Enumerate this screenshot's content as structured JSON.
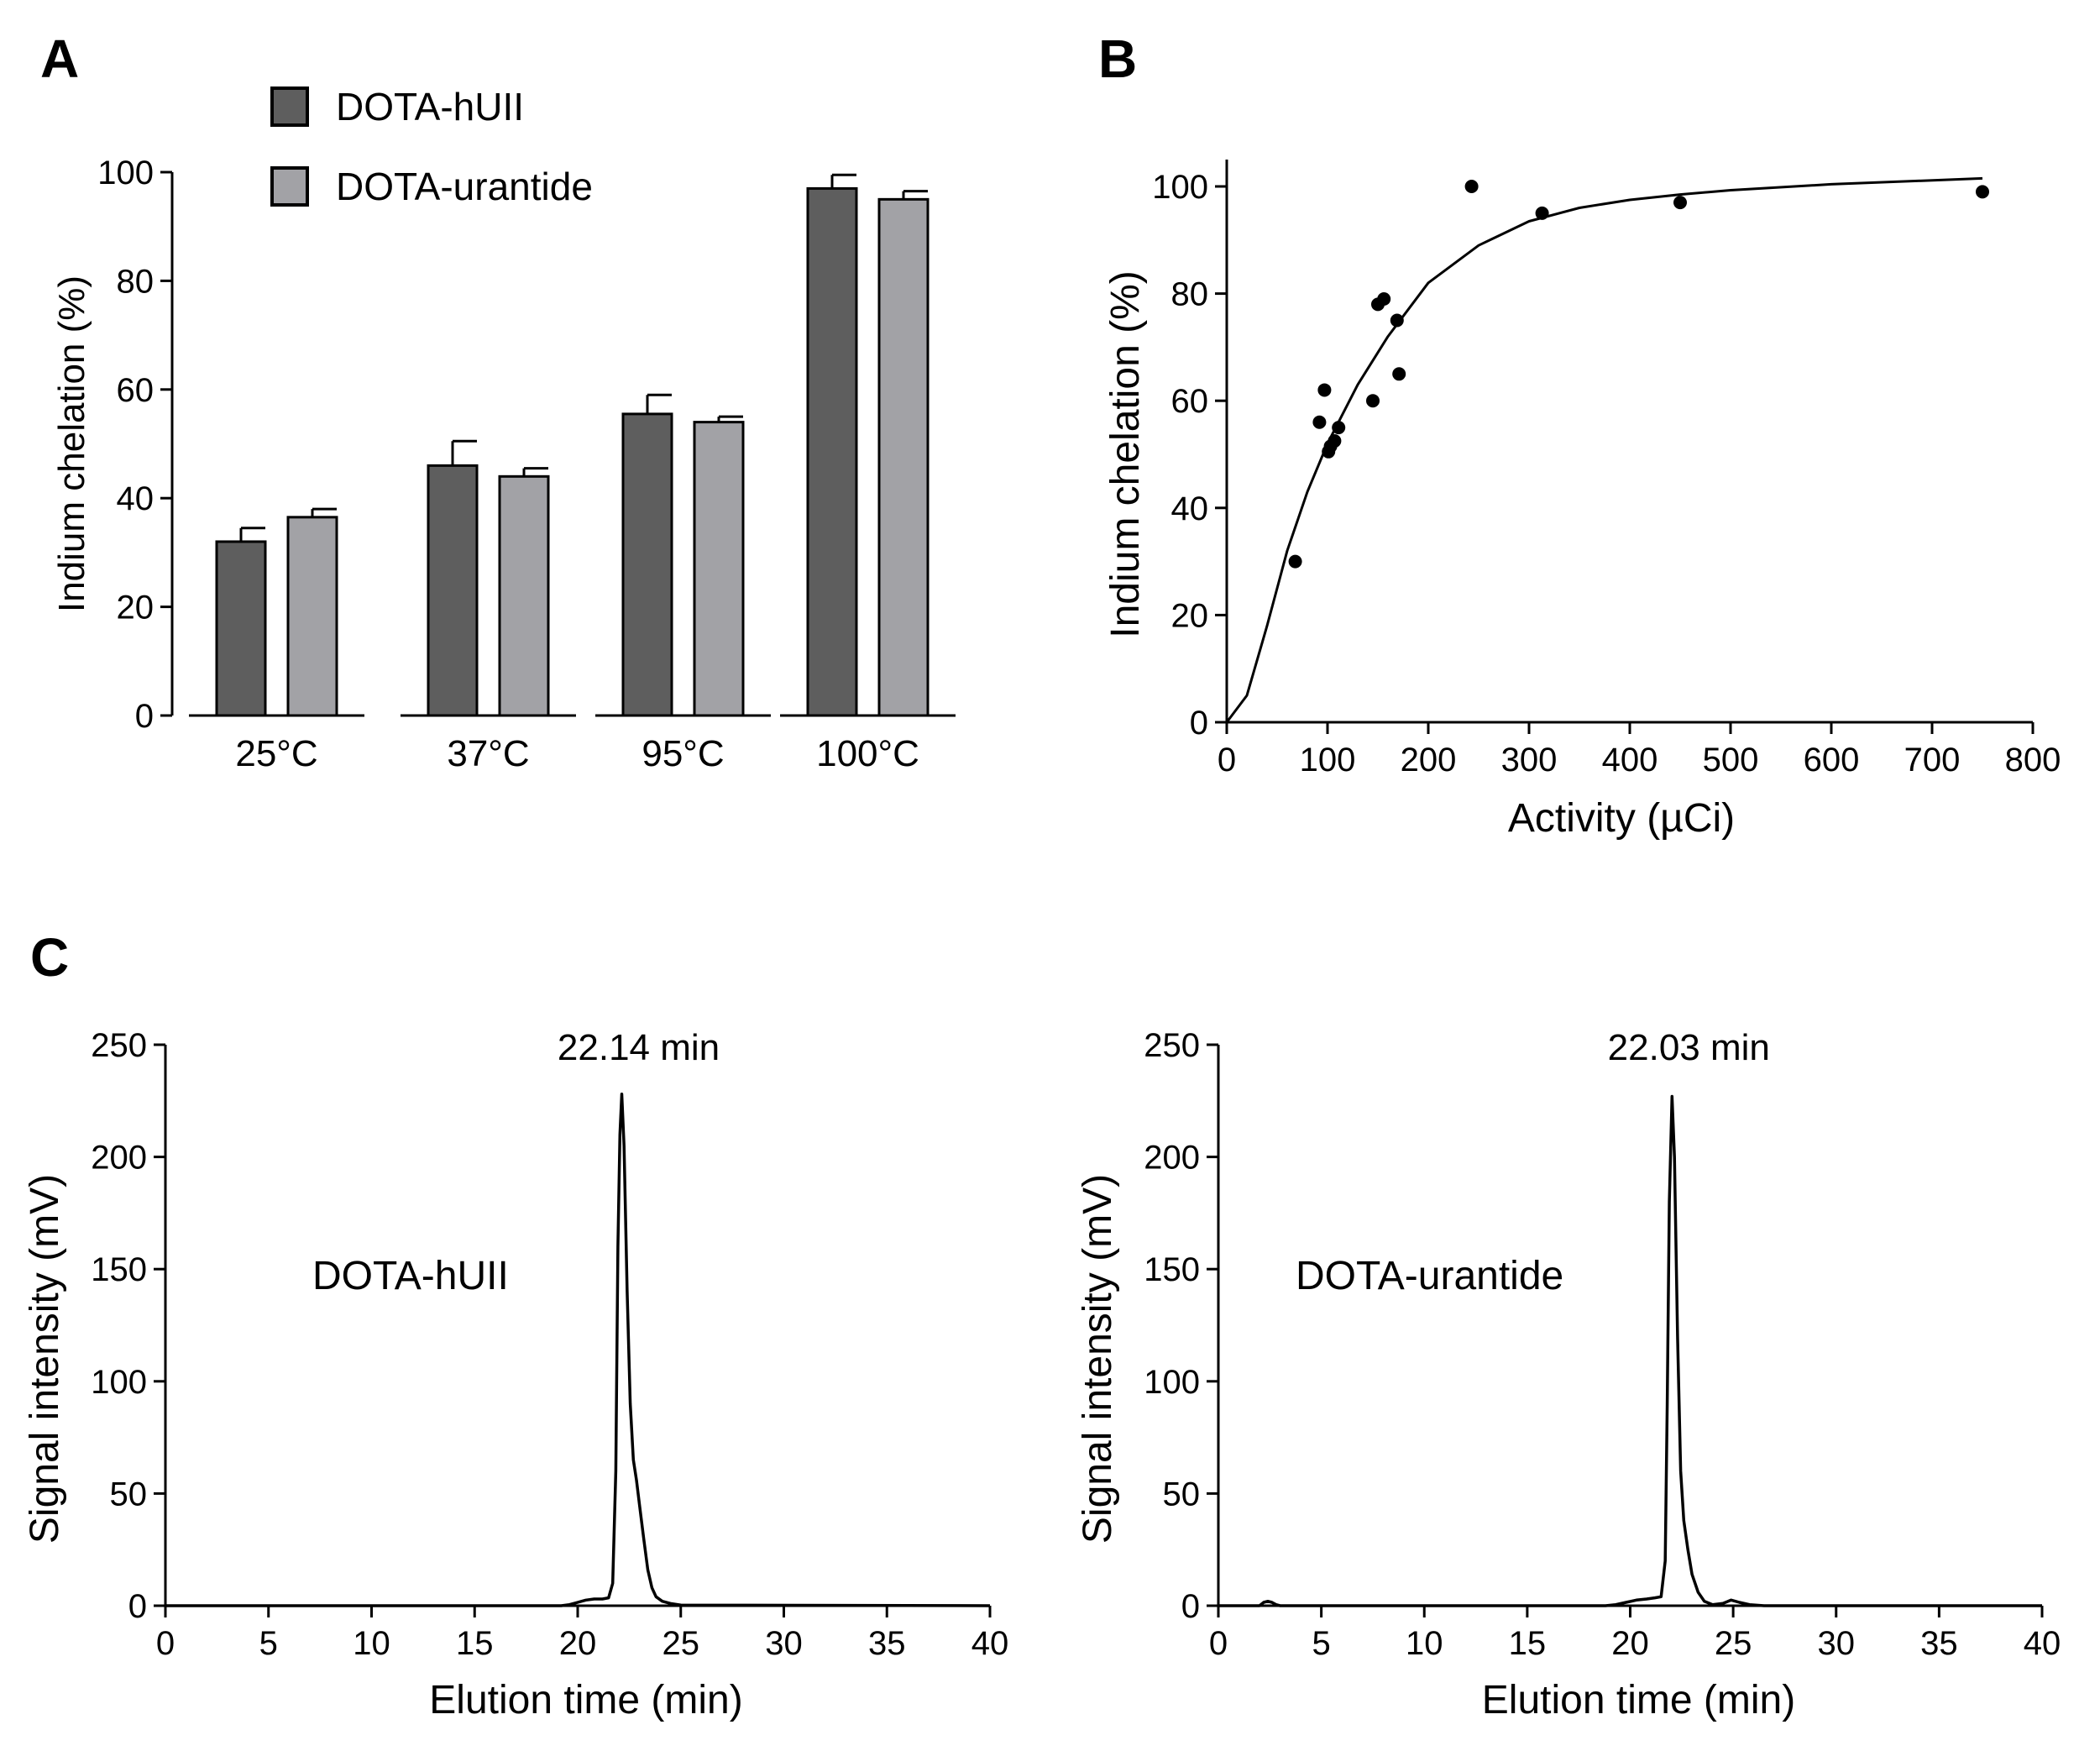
{
  "panels": {
    "a": {
      "letter": "A"
    },
    "b": {
      "letter": "B"
    },
    "c": {
      "letter": "C"
    }
  },
  "chart_data": [
    {
      "id": "A",
      "type": "bar",
      "categories": [
        "25°C",
        "37°C",
        "95°C",
        "100°C"
      ],
      "series": [
        {
          "name": "DOTA-hUII",
          "color": "#5e5e5e",
          "values": [
            32,
            46,
            55.5,
            97
          ],
          "errors": [
            2.5,
            4.5,
            3.5,
            2.5
          ]
        },
        {
          "name": "DOTA-urantide",
          "color": "#a2a2a6",
          "values": [
            36.5,
            44,
            54,
            95
          ],
          "errors": [
            1.5,
            1.5,
            1,
            1.5
          ]
        }
      ],
      "title": "",
      "xlabel": "",
      "ylabel": "Indium chelation  (%)",
      "ylim": [
        0,
        100
      ],
      "yticks": [
        0,
        20,
        40,
        60,
        80,
        100
      ],
      "ytick_labels": [
        "0",
        "20",
        "40",
        "60",
        "80",
        "100"
      ],
      "legend": "top-left",
      "grid": false
    },
    {
      "id": "B",
      "type": "scatter",
      "points": [
        [
          68,
          30
        ],
        [
          92,
          56
        ],
        [
          97,
          62
        ],
        [
          101,
          50.5
        ],
        [
          103,
          51.5
        ],
        [
          107,
          52.5
        ],
        [
          111,
          55
        ],
        [
          145,
          60
        ],
        [
          150,
          78
        ],
        [
          156,
          79
        ],
        [
          169,
          75
        ],
        [
          171,
          65
        ],
        [
          243,
          100
        ],
        [
          313,
          95
        ],
        [
          450,
          97
        ],
        [
          750,
          99
        ]
      ],
      "fit_curve": {
        "type": "sigmoid",
        "x": [
          0,
          20,
          40,
          60,
          80,
          100,
          130,
          160,
          200,
          250,
          300,
          350,
          400,
          450,
          500,
          600,
          750
        ],
        "y": [
          0,
          5,
          18,
          32,
          43,
          52,
          63,
          72,
          82,
          89,
          93.5,
          96,
          97.5,
          98.5,
          99.3,
          100.4,
          101.5
        ]
      },
      "title": "",
      "xlabel": "Activity (µCi)",
      "ylabel": "Indium chelation  (%)",
      "xlim": [
        0,
        800
      ],
      "ylim": [
        0,
        100
      ],
      "xticks": [
        0,
        100,
        200,
        300,
        400,
        500,
        600,
        700,
        800
      ],
      "xtick_labels": [
        "0",
        "100",
        "200",
        "300",
        "400",
        "500",
        "600",
        "700",
        "800"
      ],
      "yticks": [
        0,
        20,
        40,
        60,
        80,
        100
      ],
      "ytick_labels": [
        "0",
        "20",
        "40",
        "60",
        "80",
        "100"
      ],
      "grid": false
    },
    {
      "id": "C-left",
      "type": "line",
      "series_name": "DOTA-hUII",
      "peak_label": "22.14 min",
      "peak_x": 22.14,
      "trace": {
        "x": [
          0,
          19.2,
          19.6,
          20.0,
          20.4,
          20.8,
          21.2,
          21.5,
          21.7,
          21.85,
          21.95,
          22.05,
          22.14,
          22.25,
          22.4,
          22.55,
          22.7,
          22.85,
          23.0,
          23.2,
          23.4,
          23.6,
          23.8,
          24.1,
          24.5,
          25.0,
          40
        ],
        "y": [
          0,
          0,
          0.5,
          1.5,
          2.5,
          3,
          3,
          3.5,
          10,
          60,
          160,
          210,
          228,
          205,
          140,
          90,
          65,
          56,
          45,
          30,
          16,
          8,
          4,
          2,
          1,
          0.3,
          0
        ]
      },
      "title": "",
      "xlabel": "Elution time  (min)",
      "ylabel": "Signal intensity  (mV)",
      "xlim": [
        0,
        40
      ],
      "ylim": [
        0,
        250
      ],
      "xticks": [
        0,
        5,
        10,
        15,
        20,
        25,
        30,
        35,
        40
      ],
      "xtick_labels": [
        "0",
        "5",
        "10",
        "15",
        "20",
        "25",
        "30",
        "35",
        "40"
      ],
      "yticks": [
        0,
        50,
        100,
        150,
        200,
        250
      ],
      "ytick_labels": [
        "0",
        "50",
        "100",
        "150",
        "200",
        "250"
      ],
      "grid": false
    },
    {
      "id": "C-right",
      "type": "line",
      "series_name": "DOTA-urantide",
      "peak_label": "22.03 min",
      "peak_x": 22.03,
      "trace": {
        "x": [
          0,
          2.0,
          2.2,
          2.4,
          2.6,
          2.8,
          3.0,
          18.8,
          19.3,
          19.8,
          20.3,
          20.8,
          21.2,
          21.5,
          21.7,
          21.8,
          21.9,
          22.03,
          22.15,
          22.3,
          22.45,
          22.6,
          22.8,
          23.0,
          23.3,
          23.6,
          24.0,
          24.5,
          24.9,
          25.3,
          25.8,
          26.5,
          40
        ],
        "y": [
          0,
          0,
          1.5,
          2,
          1.5,
          0.5,
          0,
          0,
          0.5,
          1.5,
          2.5,
          3,
          3.5,
          4,
          20,
          90,
          180,
          227,
          200,
          120,
          60,
          38,
          25,
          14,
          6,
          2,
          0.5,
          1,
          2.5,
          1.5,
          0.5,
          0,
          0
        ]
      },
      "title": "",
      "xlabel": "Elution time  (min)",
      "ylabel": "Signal intensity  (mV)",
      "xlim": [
        0,
        40
      ],
      "ylim": [
        0,
        250
      ],
      "xticks": [
        0,
        5,
        10,
        15,
        20,
        25,
        30,
        35,
        40
      ],
      "xtick_labels": [
        "0",
        "5",
        "10",
        "15",
        "20",
        "25",
        "30",
        "35",
        "40"
      ],
      "yticks": [
        0,
        50,
        100,
        150,
        200,
        250
      ],
      "ytick_labels": [
        "0",
        "50",
        "100",
        "150",
        "200",
        "250"
      ],
      "grid": false
    }
  ]
}
